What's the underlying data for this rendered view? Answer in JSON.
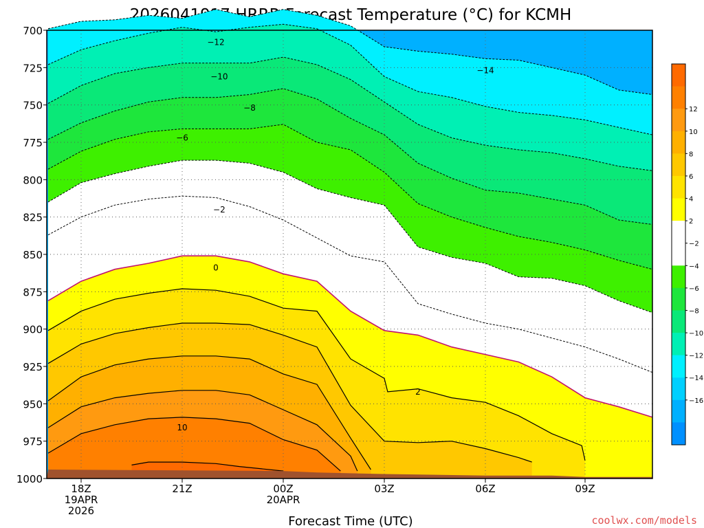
{
  "title": "2026041917 HRRR Forecast Temperature (°C) for KCMH",
  "credit": "coolwx.com/models",
  "chart_data": {
    "type": "contour",
    "title": "2026041917 HRRR Forecast Temperature (°C) for KCMH",
    "xlabel": "Forecast Time (UTC)",
    "ylabel": "",
    "x_ticks": [
      {
        "hour": 1,
        "lines": [
          "18Z",
          "19APR",
          "2026"
        ]
      },
      {
        "hour": 4,
        "lines": [
          "21Z"
        ]
      },
      {
        "hour": 7,
        "lines": [
          "00Z",
          "20APR"
        ]
      },
      {
        "hour": 10,
        "lines": [
          "03Z"
        ]
      },
      {
        "hour": 13,
        "lines": [
          "06Z"
        ]
      },
      {
        "hour": 16,
        "lines": [
          "09Z"
        ]
      }
    ],
    "xlim": [
      0,
      18
    ],
    "y_ticks": [
      700,
      725,
      750,
      775,
      800,
      825,
      850,
      875,
      900,
      925,
      950,
      975,
      1000
    ],
    "ylim": [
      1000,
      700
    ],
    "grid": "dotted",
    "colorbar": {
      "labels": [
        12,
        10,
        8,
        6,
        4,
        2,
        -2,
        -4,
        -6,
        -8,
        -10,
        -12,
        -14,
        -16
      ],
      "colors": {
        "14": "#ff6a00",
        "12": "#ff8000",
        "10": "#ff9a10",
        "8": "#ffb000",
        "6": "#ffc800",
        "4": "#ffe300",
        "2": "#ffff00",
        "0": "#ffffff",
        "-2": "#ffffff",
        "-4": "#3ef000",
        "-6": "#1ee63c",
        "-8": "#0ae878",
        "-10": "#00f0b4",
        "-12": "#00f0ff",
        "-14": "#00d0ff",
        "-16": "#00b0ff",
        "-18": "#0090ff"
      }
    },
    "ground_color": "#a0522d",
    "freezing_line_color": "#c0146e",
    "surface_pressure": [
      [
        0,
        994
      ],
      [
        7,
        995
      ],
      [
        8,
        996
      ],
      [
        10,
        997
      ],
      [
        13,
        998
      ],
      [
        15,
        998
      ],
      [
        16,
        999
      ],
      [
        18,
        999
      ]
    ],
    "contours": [
      {
        "level": -14,
        "points": [
          [
            0,
            699
          ],
          [
            1,
            694
          ],
          [
            2,
            693
          ],
          [
            3,
            690
          ],
          [
            4,
            692
          ],
          [
            5,
            686
          ],
          [
            6,
            691
          ],
          [
            7,
            686
          ],
          [
            8,
            690
          ],
          [
            9,
            697
          ],
          [
            10,
            711
          ],
          [
            11,
            714
          ],
          [
            12,
            716
          ],
          [
            13,
            719
          ],
          [
            14,
            720
          ],
          [
            15,
            725
          ],
          [
            16,
            730
          ],
          [
            17,
            740
          ],
          [
            18,
            743
          ]
        ]
      },
      {
        "level": -12,
        "points": [
          [
            0,
            723
          ],
          [
            1,
            713
          ],
          [
            2,
            707
          ],
          [
            3,
            702
          ],
          [
            4,
            698
          ],
          [
            5,
            701
          ],
          [
            6,
            698
          ],
          [
            7,
            696
          ],
          [
            8,
            699
          ],
          [
            9,
            710
          ],
          [
            10,
            731
          ],
          [
            11,
            741
          ],
          [
            12,
            745
          ],
          [
            13,
            751
          ],
          [
            14,
            755
          ],
          [
            15,
            757
          ],
          [
            16,
            760
          ],
          [
            17,
            765
          ],
          [
            18,
            770
          ]
        ]
      },
      {
        "level": -10,
        "points": [
          [
            0,
            749
          ],
          [
            1,
            737
          ],
          [
            2,
            729
          ],
          [
            3,
            725
          ],
          [
            4,
            722
          ],
          [
            5,
            722
          ],
          [
            6,
            722
          ],
          [
            7,
            718
          ],
          [
            8,
            723
          ],
          [
            9,
            733
          ],
          [
            10,
            748
          ],
          [
            11,
            763
          ],
          [
            12,
            772
          ],
          [
            13,
            777
          ],
          [
            14,
            780
          ],
          [
            15,
            782
          ],
          [
            16,
            786
          ],
          [
            17,
            791
          ],
          [
            18,
            794
          ]
        ]
      },
      {
        "level": -8,
        "points": [
          [
            0,
            773
          ],
          [
            1,
            762
          ],
          [
            2,
            754
          ],
          [
            3,
            748
          ],
          [
            4,
            745
          ],
          [
            5,
            745
          ],
          [
            6,
            743
          ],
          [
            7,
            739
          ],
          [
            8,
            746
          ],
          [
            9,
            759
          ],
          [
            10,
            770
          ],
          [
            11,
            789
          ],
          [
            12,
            799
          ],
          [
            13,
            807
          ],
          [
            14,
            809
          ],
          [
            15,
            813
          ],
          [
            16,
            817
          ],
          [
            17,
            827
          ],
          [
            18,
            830
          ]
        ]
      },
      {
        "level": -6,
        "points": [
          [
            0,
            793
          ],
          [
            1,
            781
          ],
          [
            2,
            773
          ],
          [
            3,
            768
          ],
          [
            4,
            766
          ],
          [
            5,
            766
          ],
          [
            6,
            766
          ],
          [
            7,
            763
          ],
          [
            8,
            775
          ],
          [
            9,
            780
          ],
          [
            10,
            795
          ],
          [
            11,
            816
          ],
          [
            12,
            825
          ],
          [
            13,
            832
          ],
          [
            14,
            838
          ],
          [
            15,
            842
          ],
          [
            16,
            847
          ],
          [
            17,
            854
          ],
          [
            18,
            860
          ]
        ]
      },
      {
        "level": -4,
        "points": [
          [
            0,
            815
          ],
          [
            1,
            802
          ],
          [
            2,
            796
          ],
          [
            3,
            791
          ],
          [
            4,
            787
          ],
          [
            5,
            787
          ],
          [
            6,
            789
          ],
          [
            7,
            795
          ],
          [
            8,
            806
          ],
          [
            9,
            812
          ],
          [
            10,
            817
          ],
          [
            11,
            845
          ],
          [
            12,
            852
          ],
          [
            13,
            856
          ],
          [
            14,
            865
          ],
          [
            15,
            866
          ],
          [
            16,
            871
          ],
          [
            17,
            881
          ],
          [
            18,
            889
          ]
        ]
      },
      {
        "level": -2,
        "points": [
          [
            0,
            837
          ],
          [
            1,
            825
          ],
          [
            2,
            817
          ],
          [
            3,
            813
          ],
          [
            4,
            811
          ],
          [
            5,
            812
          ],
          [
            6,
            818
          ],
          [
            7,
            827
          ],
          [
            8,
            839
          ],
          [
            9,
            851
          ],
          [
            10,
            855
          ],
          [
            11,
            883
          ],
          [
            12,
            890
          ],
          [
            13,
            896
          ],
          [
            14,
            900
          ],
          [
            15,
            906
          ],
          [
            16,
            912
          ],
          [
            17,
            920
          ],
          [
            18,
            929
          ]
        ]
      },
      {
        "level": 0,
        "points": [
          [
            0,
            881
          ],
          [
            1,
            868
          ],
          [
            2,
            860
          ],
          [
            3,
            856
          ],
          [
            4,
            851
          ],
          [
            5,
            851
          ],
          [
            6,
            855
          ],
          [
            7,
            863
          ],
          [
            8,
            868
          ],
          [
            9,
            888
          ],
          [
            10,
            901
          ],
          [
            11,
            904
          ],
          [
            12,
            912
          ],
          [
            13,
            917
          ],
          [
            14,
            922
          ],
          [
            15,
            932
          ],
          [
            16,
            946
          ],
          [
            17,
            952
          ],
          [
            18,
            959
          ]
        ]
      },
      {
        "level": 2,
        "points": [
          [
            0,
            901
          ],
          [
            1,
            888
          ],
          [
            2,
            880
          ],
          [
            3,
            876
          ],
          [
            4,
            873
          ],
          [
            5,
            874
          ],
          [
            6,
            878
          ],
          [
            7,
            886
          ],
          [
            8,
            888
          ],
          [
            9,
            920
          ],
          [
            10,
            933
          ],
          [
            10.1,
            942
          ],
          [
            11,
            940
          ],
          [
            12,
            946
          ],
          [
            13,
            949
          ],
          [
            14,
            958
          ],
          [
            15,
            970
          ],
          [
            15.9,
            978
          ],
          [
            16,
            988
          ]
        ]
      },
      {
        "level": 4,
        "points": [
          [
            0,
            923
          ],
          [
            1,
            910
          ],
          [
            2,
            903
          ],
          [
            3,
            899
          ],
          [
            4,
            896
          ],
          [
            5,
            896
          ],
          [
            6,
            897
          ],
          [
            7,
            904
          ],
          [
            8,
            912
          ],
          [
            9,
            951
          ],
          [
            10,
            975
          ],
          [
            11,
            976
          ],
          [
            12,
            975
          ],
          [
            13,
            980
          ],
          [
            14,
            986
          ],
          [
            14.4,
            989
          ]
        ]
      },
      {
        "level": 6,
        "points": [
          [
            0,
            948
          ],
          [
            1,
            932
          ],
          [
            2,
            924
          ],
          [
            3,
            920
          ],
          [
            4,
            918
          ],
          [
            5,
            918
          ],
          [
            6,
            920
          ],
          [
            7,
            930
          ],
          [
            8,
            937
          ],
          [
            9,
            973
          ],
          [
            9.6,
            994
          ]
        ]
      },
      {
        "level": 8,
        "points": [
          [
            0,
            966
          ],
          [
            1,
            952
          ],
          [
            2,
            946
          ],
          [
            3,
            943
          ],
          [
            4,
            941
          ],
          [
            5,
            941
          ],
          [
            6,
            944
          ],
          [
            7,
            954
          ],
          [
            8,
            964
          ],
          [
            9,
            985
          ],
          [
            9.2,
            995
          ]
        ]
      },
      {
        "level": 10,
        "points": [
          [
            0,
            983
          ],
          [
            1,
            970
          ],
          [
            2,
            964
          ],
          [
            3,
            960
          ],
          [
            4,
            959
          ],
          [
            5,
            960
          ],
          [
            6,
            963
          ],
          [
            7,
            974
          ],
          [
            8,
            981
          ],
          [
            8.7,
            995
          ]
        ]
      },
      {
        "level": 12,
        "points": [
          [
            2.5,
            991
          ],
          [
            3,
            989
          ],
          [
            4,
            989
          ],
          [
            5,
            990
          ],
          [
            5.7,
            992
          ],
          [
            7,
            995
          ]
        ]
      },
      {
        "level": 14,
        "points": [
          [
            0,
            1000
          ],
          [
            7.5,
            1000
          ]
        ]
      }
    ],
    "contour_labels": [
      {
        "level": -12,
        "hour": 5,
        "p": 708
      },
      {
        "level": -10,
        "hour": 5.1,
        "p": 731
      },
      {
        "level": -8,
        "hour": 6,
        "p": 752
      },
      {
        "level": -6,
        "hour": 4,
        "p": 772
      },
      {
        "level": -14,
        "hour": 13,
        "p": 727
      },
      {
        "level": -2,
        "hour": 5.1,
        "p": 820
      },
      {
        "level": 0,
        "hour": 5,
        "p": 859
      },
      {
        "level": 2,
        "hour": 11,
        "p": 942
      },
      {
        "level": 10,
        "hour": 4,
        "p": 966
      }
    ]
  }
}
